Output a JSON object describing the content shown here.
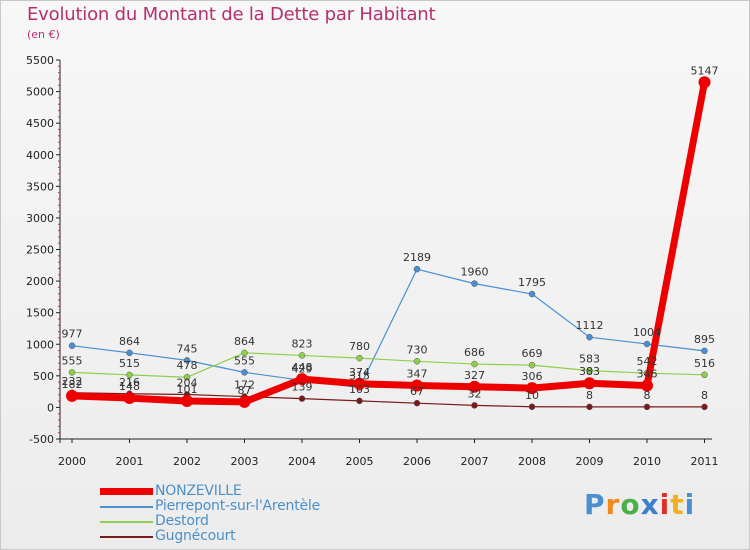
{
  "title": "Evolution du Montant de la Dette par Habitant",
  "subtitle": "(en €)",
  "logo": {
    "text": "Proxiti",
    "letter_colors": [
      "#4a8fd0",
      "#f08a1c",
      "#4ab04a",
      "#3a7fc8",
      "#e0302a",
      "#f0b020",
      "#4a8fd0"
    ]
  },
  "chart_data": {
    "type": "line",
    "title": "Evolution du Montant de la Dette par Habitant",
    "subtitle": "(en €)",
    "x": [
      "2000",
      "2001",
      "2002",
      "2003",
      "2004",
      "2005",
      "2006",
      "2007",
      "2008",
      "2009",
      "2010",
      "2011"
    ],
    "ylim": [
      -500,
      5500
    ],
    "yticks": [
      -500,
      0,
      500,
      1000,
      1500,
      2000,
      2500,
      3000,
      3500,
      4000,
      4500,
      5000,
      5500
    ],
    "grid": false,
    "legend_position": "bottom-left",
    "series": [
      {
        "name": "NONZEVILLE",
        "color": "#ee0000",
        "width": 7,
        "values": [
          182,
          148,
          101,
          87,
          448,
          374,
          347,
          327,
          306,
          383,
          346,
          5147
        ],
        "labels": [
          "182",
          "148",
          "101",
          "87",
          "448",
          "374",
          "347",
          "327",
          "306",
          "383",
          "346",
          "5147"
        ],
        "label_color": "#333333"
      },
      {
        "name": "Pierrepont-sur-l'Arentèle",
        "color": "#4a8fd0",
        "width": 1.2,
        "values": [
          977,
          864,
          745,
          555,
          429,
          315,
          2189,
          1960,
          1795,
          1112,
          1004,
          895
        ],
        "labels": [
          "977",
          "864",
          "745",
          "555",
          "429",
          "315",
          "2189",
          "1960",
          "1795",
          "1112",
          "1004",
          "895"
        ],
        "label_color": "#333333"
      },
      {
        "name": "Destord",
        "color": "#8ed04a",
        "width": 1.2,
        "values": [
          555,
          515,
          478,
          864,
          823,
          780,
          730,
          686,
          669,
          583,
          542,
          516
        ],
        "labels": [
          "555",
          "515",
          "478",
          "864",
          "823",
          "780",
          "730",
          "686",
          "669",
          "583",
          "542",
          "516"
        ],
        "label_color": "#333333"
      },
      {
        "name": "Gugnécourt",
        "color": "#7a1a1a",
        "width": 1.2,
        "values": [
          232,
          216,
          204,
          172,
          139,
          103,
          67,
          32,
          10,
          8,
          8,
          8
        ],
        "labels": [
          "232",
          "216",
          "204",
          "172",
          "139",
          "103",
          "67",
          "32",
          "10",
          "8",
          "8",
          "8"
        ],
        "label_color": "#333333"
      }
    ]
  }
}
